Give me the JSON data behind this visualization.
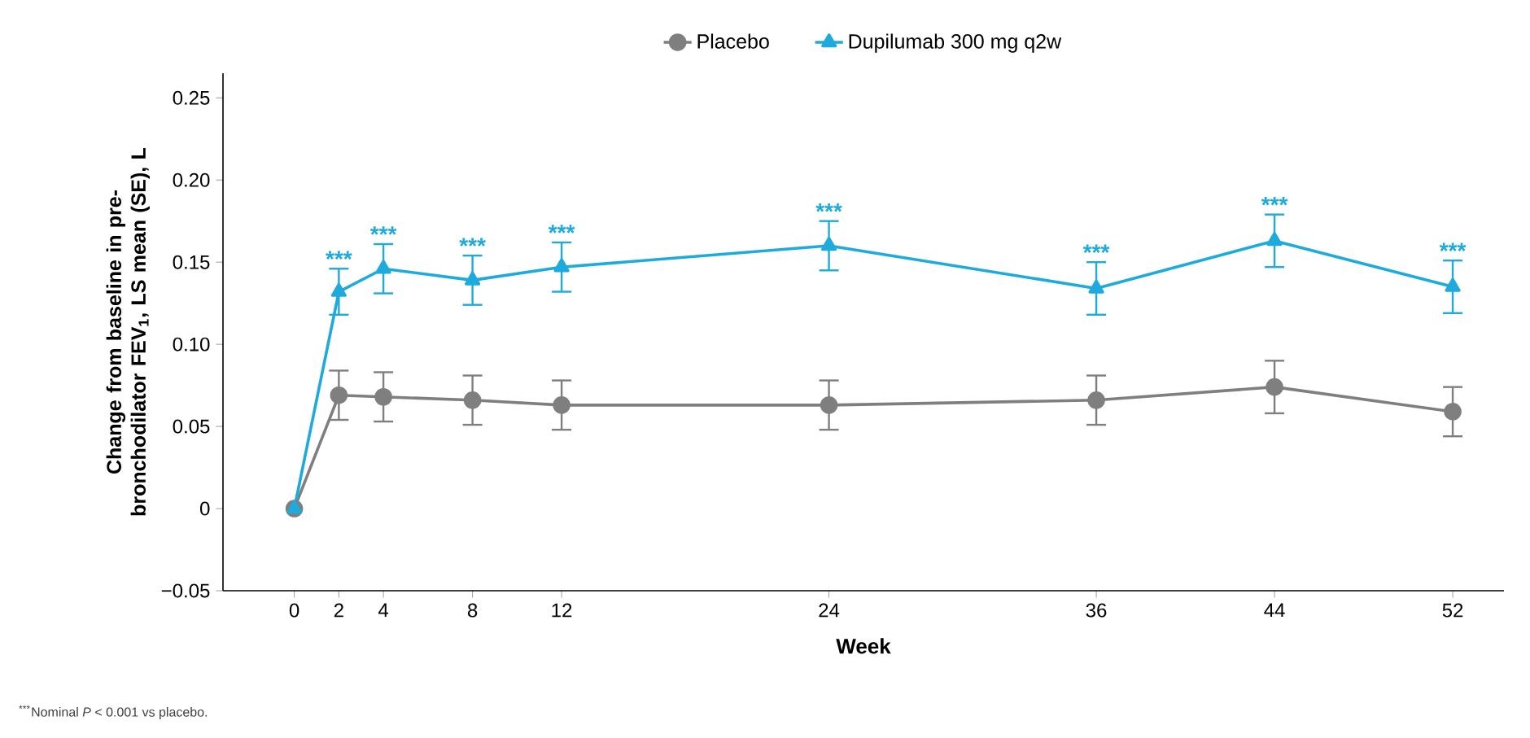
{
  "chart_data": {
    "type": "line",
    "xlabel": "Week",
    "ylabel": "Change from baseline in pre-bronchodilator FEV$_{1}$, LS mean (SE), L",
    "x": [
      0,
      2,
      4,
      8,
      12,
      24,
      36,
      44,
      52
    ],
    "series": [
      {
        "name": "Placebo",
        "color": "#7f7f7f",
        "marker": "circle",
        "values": [
          0,
          0.069,
          0.068,
          0.066,
          0.063,
          0.063,
          0.066,
          0.074,
          0.059
        ],
        "errors": [
          null,
          0.015,
          0.015,
          0.015,
          0.015,
          0.015,
          0.015,
          0.016,
          0.015
        ]
      },
      {
        "name": "Dupilumab 300 mg q2w",
        "color": "#1eaadc",
        "marker": "triangle",
        "values": [
          0,
          0.132,
          0.146,
          0.139,
          0.147,
          0.16,
          0.134,
          0.163,
          0.135
        ],
        "errors": [
          null,
          0.014,
          0.015,
          0.015,
          0.015,
          0.015,
          0.016,
          0.016,
          0.016
        ]
      }
    ],
    "xlim": [
      -3.2,
      54.3
    ],
    "ylim": [
      -0.05,
      0.265
    ],
    "xticks": [
      0,
      2,
      4,
      8,
      12,
      24,
      36,
      44,
      52
    ],
    "yticks": [
      {
        "value": -0.05,
        "label": "−0.05"
      },
      {
        "value": 0,
        "label": "0"
      },
      {
        "value": 0.05,
        "label": "0.05"
      },
      {
        "value": 0.1,
        "label": "0.10"
      },
      {
        "value": 0.15,
        "label": "0.15"
      },
      {
        "value": 0.2,
        "label": "0.20"
      },
      {
        "value": 0.25,
        "label": "0.25"
      }
    ],
    "legend": "top",
    "grid": false,
    "line_style": "solid",
    "annotations": [
      {
        "text": "***",
        "x": 2,
        "y": 0.146
      },
      {
        "text": "***",
        "x": 4,
        "y": 0.161
      },
      {
        "text": "***",
        "x": 8,
        "y": 0.154
      },
      {
        "text": "***",
        "x": 12,
        "y": 0.162
      },
      {
        "text": "***",
        "x": 24,
        "y": 0.175
      },
      {
        "text": "***",
        "x": 36,
        "y": 0.15
      },
      {
        "text": "***",
        "x": 44,
        "y": 0.179
      },
      {
        "text": "***",
        "x": 52,
        "y": 0.151
      },
      "$^{***}$Nominal *P* < 0.001 vs placebo."
    ]
  }
}
